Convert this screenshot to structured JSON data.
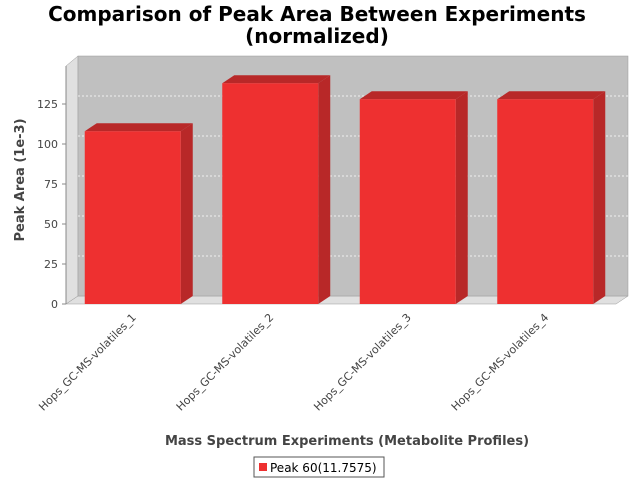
{
  "chart_data": {
    "type": "bar",
    "title_line1": "Comparison of Peak Area Between Experiments",
    "title_line2": "(normalized)",
    "xlabel": "Mass Spectrum Experiments (Metabolite Profiles)",
    "ylabel": "Peak Area (1e-3)",
    "categories": [
      "Hops_GC-MS-volatiles_1",
      "Hops_GC-MS-volatiles_2",
      "Hops_GC-MS-volatiles_3",
      "Hops_GC-MS-volatiles_4"
    ],
    "series": [
      {
        "name": "Peak 60(11.7575)",
        "values": [
          108,
          138,
          128,
          128
        ]
      }
    ],
    "ylim": [
      0,
      150
    ],
    "yticks": [
      0,
      25,
      50,
      75,
      100,
      125
    ],
    "grid": true,
    "legend_position": "bottom-center",
    "colors": {
      "bar_front": "#ee3030",
      "bar_top": "#b82828",
      "bar_side": "#b82828",
      "plot_background": "#c0c0c0",
      "wall": "#e0e0e0",
      "gridline": "#ffffff"
    }
  }
}
